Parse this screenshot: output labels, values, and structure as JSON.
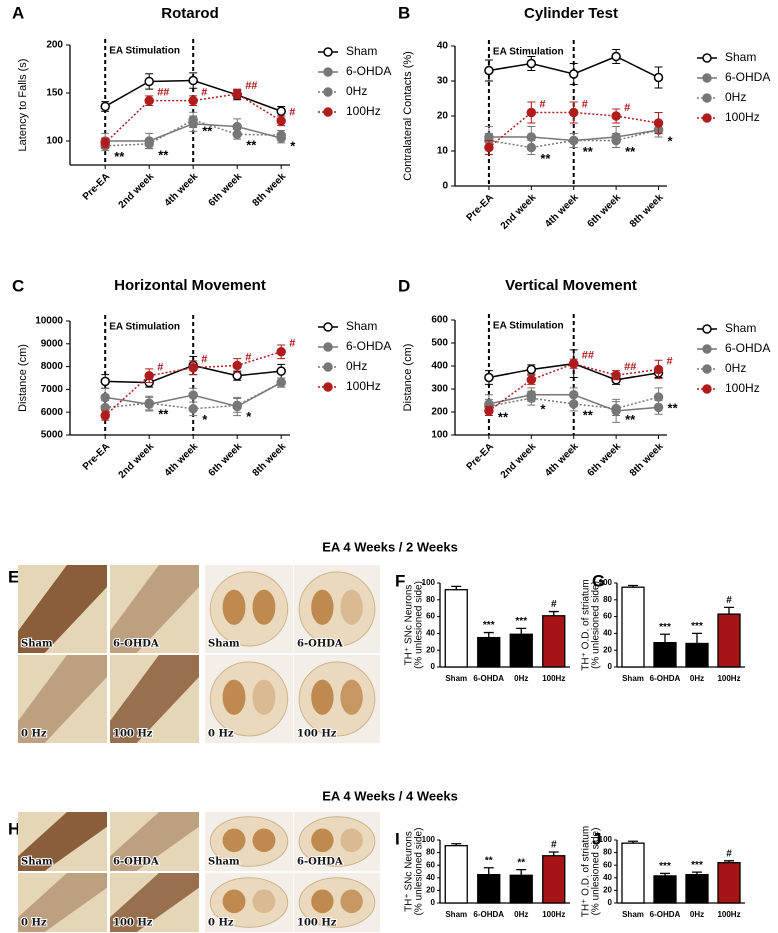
{
  "chart_data": [
    {
      "type": "line",
      "panel": "A",
      "title": "Rotarod",
      "ylabel": "Latency to Falls (s)",
      "annotation": "EA Stimulation",
      "categories": [
        "Pre-EA",
        "2nd week",
        "4th week",
        "6th week",
        "8th week"
      ],
      "ylim": [
        75,
        200
      ],
      "yticks": [
        100,
        150,
        200
      ],
      "series": [
        {
          "name": "Sham",
          "color": "#000000",
          "marker": "open",
          "linestyle": "solid",
          "values": [
            136,
            162,
            163,
            148,
            131
          ],
          "errors": [
            5,
            8,
            8,
            5,
            5
          ]
        },
        {
          "name": "6-OHDA",
          "color": "#777777",
          "marker": "filled",
          "linestyle": "solid",
          "values": [
            100,
            100,
            118,
            115,
            103
          ],
          "errors": [
            8,
            8,
            8,
            8,
            5
          ]
        },
        {
          "name": "0Hz",
          "color": "#777777",
          "marker": "filled",
          "linestyle": "dotted",
          "values": [
            95,
            97,
            122,
            107,
            106
          ],
          "errors": [
            5,
            5,
            8,
            5,
            5
          ],
          "sig_side": "below",
          "significance": [
            "**",
            "**",
            "**",
            "**",
            "*"
          ]
        },
        {
          "name": "100Hz",
          "color": "#b01c1c",
          "marker": "filled",
          "linestyle": "dotted",
          "values": [
            98,
            142,
            142,
            149,
            121
          ],
          "errors": [
            5,
            5,
            5,
            5,
            5
          ],
          "sig_side": "above",
          "significance": [
            null,
            "##",
            "#",
            "##",
            "#"
          ]
        }
      ]
    },
    {
      "type": "line",
      "panel": "B",
      "title": "Cylinder Test",
      "ylabel": "Contralateral Contacts (%)",
      "annotation": "EA Stimulation",
      "categories": [
        "Pre-EA",
        "2nd week",
        "4th week",
        "6th week",
        "8th week"
      ],
      "ylim": [
        0,
        40
      ],
      "yticks": [
        0,
        10,
        20,
        30,
        40
      ],
      "series": [
        {
          "name": "Sham",
          "color": "#000000",
          "marker": "open",
          "linestyle": "solid",
          "values": [
            33,
            35,
            32,
            37,
            31
          ],
          "errors": [
            3,
            2,
            3,
            2,
            3
          ]
        },
        {
          "name": "6-OHDA",
          "color": "#777777",
          "marker": "filled",
          "linestyle": "solid",
          "values": [
            14,
            14,
            13,
            14,
            16
          ],
          "errors": [
            3,
            3,
            2,
            3,
            2
          ]
        },
        {
          "name": "0Hz",
          "color": "#777777",
          "marker": "filled",
          "linestyle": "dotted",
          "values": [
            13,
            11,
            13,
            13,
            16
          ],
          "errors": [
            2,
            2,
            2,
            2,
            2
          ],
          "sig_side": "below",
          "significance": [
            null,
            "**",
            "**",
            "**",
            "*"
          ]
        },
        {
          "name": "100Hz",
          "color": "#b01c1c",
          "marker": "filled",
          "linestyle": "dotted",
          "values": [
            11,
            21,
            21,
            20,
            18
          ],
          "errors": [
            2,
            3,
            3,
            2,
            3
          ],
          "sig_side": "above",
          "significance": [
            null,
            "#",
            "#",
            "#",
            null
          ]
        }
      ]
    },
    {
      "type": "line",
      "panel": "C",
      "title": "Horizontal Movement",
      "ylabel": "Distance (cm)",
      "annotation": "EA Stimulation",
      "categories": [
        "Pre-EA",
        "2nd week",
        "4th week",
        "6th week",
        "8th week"
      ],
      "ylim": [
        5000,
        10000
      ],
      "yticks": [
        5000,
        6000,
        7000,
        8000,
        9000,
        10000
      ],
      "series": [
        {
          "name": "Sham",
          "color": "#000000",
          "marker": "open",
          "linestyle": "solid",
          "values": [
            7350,
            7300,
            8050,
            7600,
            7800
          ],
          "errors": [
            300,
            200,
            400,
            200,
            300
          ]
        },
        {
          "name": "6-OHDA",
          "color": "#777777",
          "marker": "filled",
          "linestyle": "solid",
          "values": [
            6650,
            6350,
            6750,
            6250,
            7300
          ],
          "errors": [
            400,
            300,
            300,
            400,
            200
          ]
        },
        {
          "name": "0Hz",
          "color": "#777777",
          "marker": "filled",
          "linestyle": "dotted",
          "values": [
            6200,
            6400,
            6150,
            6300,
            7300
          ],
          "errors": [
            300,
            300,
            300,
            300,
            200
          ],
          "sig_side": "below",
          "significance": [
            null,
            "**",
            "*",
            "*",
            null
          ]
        },
        {
          "name": "100Hz",
          "color": "#b01c1c",
          "marker": "filled",
          "linestyle": "dotted",
          "values": [
            5850,
            7600,
            7950,
            8050,
            8650
          ],
          "errors": [
            200,
            300,
            300,
            300,
            300
          ],
          "sig_side": "above",
          "significance": [
            null,
            "#",
            "#",
            "#",
            "#"
          ]
        }
      ]
    },
    {
      "type": "line",
      "panel": "D",
      "title": "Vertical Movement",
      "ylabel": "Distance (cm)",
      "annotation": "EA Stimulation",
      "categories": [
        "Pre-EA",
        "2nd week",
        "4th week",
        "6th week",
        "8th week"
      ],
      "ylim": [
        100,
        600
      ],
      "yticks": [
        100,
        200,
        300,
        400,
        500,
        600
      ],
      "series": [
        {
          "name": "Sham",
          "color": "#000000",
          "marker": "open",
          "linestyle": "solid",
          "values": [
            350,
            385,
            410,
            340,
            370
          ],
          "errors": [
            30,
            20,
            60,
            20,
            20
          ]
        },
        {
          "name": "6-OHDA",
          "color": "#777777",
          "marker": "filled",
          "linestyle": "solid",
          "values": [
            235,
            275,
            275,
            205,
            220
          ],
          "errors": [
            40,
            30,
            30,
            50,
            30
          ]
        },
        {
          "name": "0Hz",
          "color": "#777777",
          "marker": "filled",
          "linestyle": "dotted",
          "values": [
            225,
            260,
            235,
            215,
            265
          ],
          "errors": [
            30,
            30,
            30,
            30,
            40
          ],
          "sig_side": "below",
          "significance": [
            "**",
            "*",
            "**",
            "**",
            "**"
          ]
        },
        {
          "name": "100Hz",
          "color": "#b01c1c",
          "marker": "filled",
          "linestyle": "dotted",
          "values": [
            205,
            340,
            410,
            360,
            385
          ],
          "errors": [
            20,
            20,
            20,
            20,
            40
          ],
          "sig_side": "above",
          "significance": [
            null,
            null,
            "##",
            "##",
            "#"
          ]
        }
      ]
    },
    {
      "type": "bar",
      "panel": "F",
      "ylabel": [
        "TH⁺ SNc Neurons",
        "(% unlesioned side)"
      ],
      "categories": [
        "Sham",
        "6-OHDA",
        "0Hz",
        "100Hz"
      ],
      "values": [
        92,
        35,
        39,
        61
      ],
      "errors": [
        4,
        6,
        7,
        5
      ],
      "colors": [
        "#ffffff",
        "#000000",
        "#000000",
        "#a51515"
      ],
      "significance": [
        null,
        "***",
        "***",
        "#"
      ],
      "ylim": [
        0,
        100
      ],
      "yticks": [
        0,
        20,
        40,
        60,
        80,
        100
      ]
    },
    {
      "type": "bar",
      "panel": "G",
      "ylabel": [
        "TH⁺ O.D. of striatum",
        "(% unlesioned side)"
      ],
      "categories": [
        "Sham",
        "6-OHDA",
        "0Hz",
        "100Hz"
      ],
      "values": [
        95,
        29,
        28,
        63
      ],
      "errors": [
        2,
        10,
        12,
        8
      ],
      "colors": [
        "#ffffff",
        "#000000",
        "#000000",
        "#a51515"
      ],
      "significance": [
        null,
        "***",
        "***",
        "#"
      ],
      "ylim": [
        0,
        100
      ],
      "yticks": [
        0,
        20,
        40,
        60,
        80,
        100
      ]
    },
    {
      "type": "bar",
      "panel": "I",
      "ylabel": [
        "TH⁺ SNc Neurons",
        "(% unlesioned side)"
      ],
      "categories": [
        "Sham",
        "6-OHDA",
        "0Hz",
        "100Hz"
      ],
      "values": [
        91,
        45,
        44,
        75
      ],
      "errors": [
        3,
        11,
        9,
        6
      ],
      "colors": [
        "#ffffff",
        "#000000",
        "#000000",
        "#a51515"
      ],
      "significance": [
        null,
        "**",
        "**",
        "#"
      ],
      "ylim": [
        0,
        100
      ],
      "yticks": [
        0,
        20,
        40,
        60,
        80,
        100
      ]
    },
    {
      "type": "bar",
      "panel": "J",
      "ylabel": [
        "TH⁺ O.D. of striatum",
        "(% unlesioned side)"
      ],
      "categories": [
        "Sham",
        "6-OHDA",
        "0Hz",
        "100Hz"
      ],
      "values": [
        95,
        43,
        45,
        64
      ],
      "errors": [
        3,
        4,
        4,
        3
      ],
      "colors": [
        "#ffffff",
        "#000000",
        "#000000",
        "#a51515"
      ],
      "significance": [
        null,
        "***",
        "***",
        "#"
      ],
      "ylim": [
        0,
        100
      ],
      "yticks": [
        0,
        20,
        40,
        60,
        80,
        100
      ]
    }
  ],
  "sections": [
    "EA 4 Weeks / 2 Weeks",
    "EA 4 Weeks / 4 Weeks"
  ],
  "image_panels": [
    {
      "panel": "E",
      "labels": [
        "Sham",
        "6-OHDA",
        "0 Hz",
        "100 Hz"
      ]
    },
    {
      "panel": "H",
      "labels": [
        "Sham",
        "6-OHDA",
        "0 Hz",
        "100 Hz"
      ]
    }
  ]
}
